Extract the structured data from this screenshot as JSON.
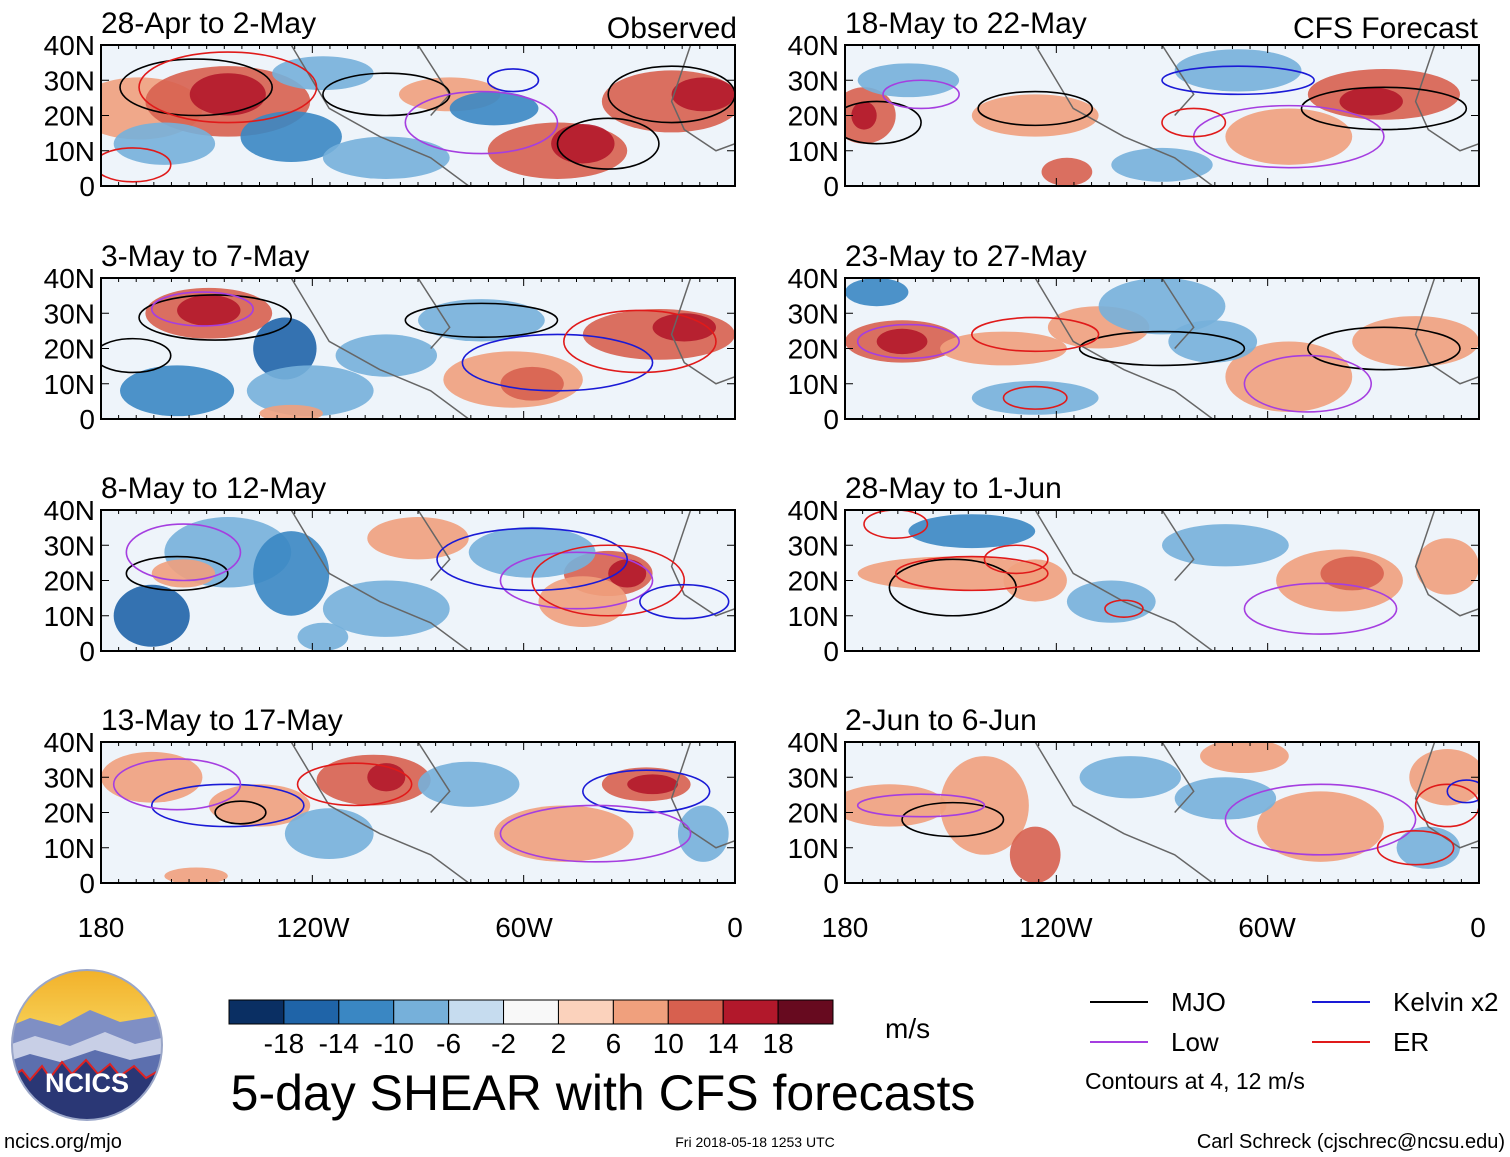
{
  "header": {
    "left_label": "Observed",
    "right_label": "CFS Forecast"
  },
  "panels": [
    {
      "period": "28-Apr to 2-May",
      "kind": "observed"
    },
    {
      "period": "3-May to 7-May",
      "kind": "observed"
    },
    {
      "period": "8-May to 12-May",
      "kind": "observed"
    },
    {
      "period": "13-May to 17-May",
      "kind": "observed"
    },
    {
      "period": "18-May to 22-May",
      "kind": "forecast"
    },
    {
      "period": "23-May to 27-May",
      "kind": "forecast"
    },
    {
      "period": "28-May to 1-Jun",
      "kind": "forecast"
    },
    {
      "period": "2-Jun to 6-Jun",
      "kind": "forecast"
    }
  ],
  "axes": {
    "lat_labels": [
      "40N",
      "30N",
      "20N",
      "10N",
      "0"
    ],
    "lon_labels": [
      "180",
      "120W",
      "60W",
      "0"
    ]
  },
  "colorbar": {
    "labels": [
      "-18",
      "-14",
      "-10",
      "-6",
      "-2",
      "2",
      "6",
      "10",
      "14",
      "18"
    ],
    "colors": [
      "#0a2f63",
      "#1f64a8",
      "#3a87c3",
      "#76b0da",
      "#c6dcef",
      "#f8f8f8",
      "#fbd2bc",
      "#f0a07d",
      "#d7604f",
      "#b2182b",
      "#670a1f"
    ],
    "unit": "m/s"
  },
  "legend": {
    "items": [
      {
        "label": "MJO",
        "color": "#000000"
      },
      {
        "label": "Kelvin x2",
        "color": "#1a1ad6"
      },
      {
        "label": "Low",
        "color": "#a53ee0"
      },
      {
        "label": "ER",
        "color": "#e01a1a"
      }
    ],
    "note": "Contours at 4, 12 m/s"
  },
  "main_title": "5-day SHEAR with CFS forecasts",
  "footer": {
    "url": "ncics.org/mjo",
    "timestamp": "Fri 2018-05-18 1253 UTC",
    "author": "Carl Schreck (cjschrec@ncsu.edu)"
  },
  "logo": {
    "text": "NCICS"
  }
}
